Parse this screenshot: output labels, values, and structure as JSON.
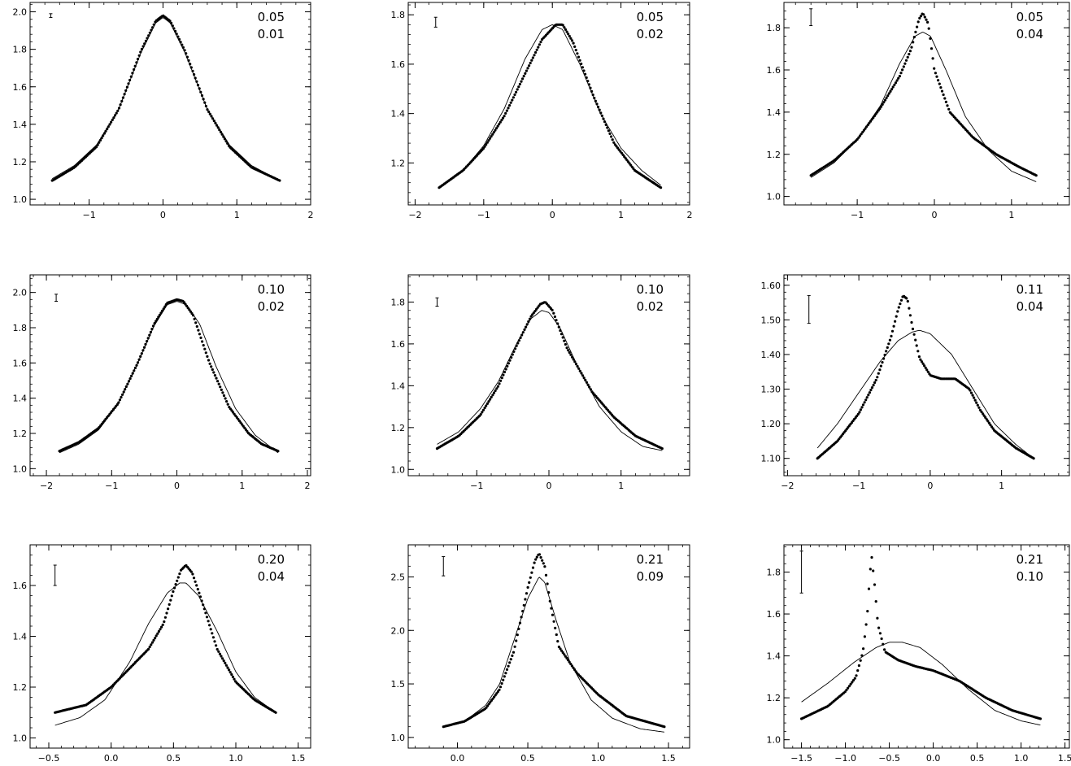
{
  "chart_data": [
    {
      "type": "line",
      "annotations": [
        "0.05",
        "0.01"
      ],
      "xlim": [
        -1.8,
        2.0
      ],
      "ylim": [
        0.97,
        2.05
      ],
      "xticks": [
        -1,
        0,
        1,
        2
      ],
      "xtick_labels": [
        "−1",
        "0",
        "1",
        "2"
      ],
      "yticks": [
        1.0,
        1.2,
        1.4,
        1.6,
        1.8,
        2.0
      ],
      "ytick_labels": [
        "1.0",
        "1.2",
        "1.4",
        "1.6",
        "1.8",
        "2.0"
      ],
      "error_bar": {
        "x": -1.52,
        "y": 1.98,
        "half": 0.01
      },
      "series": [
        {
          "style": "dotted",
          "x": [
            -1.5,
            -1.2,
            -0.9,
            -0.6,
            -0.3,
            -0.1,
            0,
            0.1,
            0.3,
            0.6,
            0.9,
            1.2,
            1.58
          ],
          "y": [
            1.1,
            1.17,
            1.28,
            1.48,
            1.79,
            1.95,
            1.98,
            1.95,
            1.79,
            1.48,
            1.28,
            1.17,
            1.1
          ]
        },
        {
          "style": "solid",
          "x": [
            -1.5,
            -1.2,
            -0.9,
            -0.6,
            -0.3,
            -0.1,
            0,
            0.1,
            0.3,
            0.6,
            0.9,
            1.2,
            1.58
          ],
          "y": [
            1.11,
            1.18,
            1.29,
            1.48,
            1.78,
            1.94,
            1.97,
            1.94,
            1.78,
            1.48,
            1.29,
            1.18,
            1.1
          ]
        }
      ]
    },
    {
      "type": "line",
      "annotations": [
        "0.05",
        "0.02"
      ],
      "xlim": [
        -2.1,
        2.0
      ],
      "ylim": [
        1.03,
        1.85
      ],
      "xticks": [
        -2,
        -1,
        0,
        1,
        2
      ],
      "xtick_labels": [
        "−2",
        "−1",
        "0",
        "1",
        "2"
      ],
      "yticks": [
        1.2,
        1.4,
        1.6,
        1.8
      ],
      "ytick_labels": [
        "1.2",
        "1.4",
        "1.6",
        "1.8"
      ],
      "error_bar": {
        "x": -1.7,
        "y": 1.77,
        "half": 0.02
      },
      "series": [
        {
          "style": "dotted",
          "x": [
            -1.65,
            -1.3,
            -1.0,
            -0.7,
            -0.4,
            -0.15,
            0.05,
            0.15,
            0.3,
            0.6,
            0.9,
            1.2,
            1.58
          ],
          "y": [
            1.1,
            1.17,
            1.26,
            1.39,
            1.56,
            1.7,
            1.76,
            1.76,
            1.69,
            1.47,
            1.28,
            1.17,
            1.1
          ]
        },
        {
          "style": "solid",
          "x": [
            -1.65,
            -1.3,
            -1.0,
            -0.7,
            -0.4,
            -0.15,
            0,
            0.15,
            0.4,
            0.7,
            1.0,
            1.3,
            1.58
          ],
          "y": [
            1.1,
            1.17,
            1.27,
            1.42,
            1.62,
            1.74,
            1.76,
            1.74,
            1.6,
            1.4,
            1.26,
            1.17,
            1.11
          ]
        }
      ]
    },
    {
      "type": "line",
      "annotations": [
        "0.05",
        "0.04"
      ],
      "xlim": [
        -1.95,
        1.75
      ],
      "ylim": [
        0.96,
        1.92
      ],
      "xticks": [
        -1,
        0,
        1
      ],
      "xtick_labels": [
        "−1",
        "0",
        "1"
      ],
      "yticks": [
        1.0,
        1.2,
        1.4,
        1.6,
        1.8
      ],
      "ytick_labels": [
        "1.0",
        "1.2",
        "1.4",
        "1.6",
        "1.8"
      ],
      "error_bar": {
        "x": -1.6,
        "y": 1.85,
        "half": 0.04
      },
      "series": [
        {
          "style": "dotted",
          "x": [
            -1.6,
            -1.3,
            -1.0,
            -0.7,
            -0.45,
            -0.3,
            -0.2,
            -0.15,
            -0.08,
            0,
            0.2,
            0.5,
            0.8,
            1.1,
            1.32
          ],
          "y": [
            1.1,
            1.17,
            1.27,
            1.42,
            1.57,
            1.7,
            1.84,
            1.87,
            1.82,
            1.6,
            1.4,
            1.28,
            1.2,
            1.14,
            1.1
          ]
        },
        {
          "style": "solid",
          "x": [
            -1.6,
            -1.3,
            -1.0,
            -0.7,
            -0.45,
            -0.25,
            -0.15,
            -0.05,
            0.15,
            0.4,
            0.7,
            1.0,
            1.32
          ],
          "y": [
            1.09,
            1.16,
            1.27,
            1.43,
            1.63,
            1.76,
            1.78,
            1.76,
            1.6,
            1.38,
            1.22,
            1.12,
            1.07
          ]
        }
      ]
    },
    {
      "type": "line",
      "annotations": [
        "0.10",
        "0.02"
      ],
      "xlim": [
        -2.25,
        2.05
      ],
      "ylim": [
        0.96,
        2.1
      ],
      "xticks": [
        -2,
        -1,
        0,
        1,
        2
      ],
      "xtick_labels": [
        "−2",
        "−1",
        "0",
        "1",
        "2"
      ],
      "yticks": [
        1.0,
        1.2,
        1.4,
        1.6,
        1.8,
        2.0
      ],
      "ytick_labels": [
        "1.0",
        "1.2",
        "1.4",
        "1.6",
        "1.8",
        "2.0"
      ],
      "error_bar": {
        "x": -1.85,
        "y": 1.97,
        "half": 0.02
      },
      "series": [
        {
          "style": "dotted",
          "x": [
            -1.8,
            -1.5,
            -1.2,
            -0.9,
            -0.6,
            -0.35,
            -0.15,
            0,
            0.1,
            0.25,
            0.5,
            0.8,
            1.1,
            1.3,
            1.55
          ],
          "y": [
            1.1,
            1.15,
            1.23,
            1.37,
            1.6,
            1.82,
            1.94,
            1.96,
            1.95,
            1.87,
            1.6,
            1.35,
            1.2,
            1.14,
            1.1
          ]
        },
        {
          "style": "solid",
          "x": [
            -1.8,
            -1.5,
            -1.2,
            -0.9,
            -0.6,
            -0.35,
            -0.15,
            0,
            0.15,
            0.35,
            0.6,
            0.9,
            1.2,
            1.55
          ],
          "y": [
            1.09,
            1.14,
            1.22,
            1.37,
            1.6,
            1.81,
            1.93,
            1.95,
            1.93,
            1.82,
            1.58,
            1.34,
            1.19,
            1.09
          ]
        }
      ]
    },
    {
      "type": "line",
      "annotations": [
        "0.10",
        "0.02"
      ],
      "xlim": [
        -1.95,
        1.95
      ],
      "ylim": [
        0.97,
        1.93
      ],
      "xticks": [
        -1,
        0,
        1
      ],
      "xtick_labels": [
        "−1",
        "0",
        "1"
      ],
      "yticks": [
        1.0,
        1.2,
        1.4,
        1.6,
        1.8
      ],
      "ytick_labels": [
        "1.0",
        "1.2",
        "1.4",
        "1.6",
        "1.8"
      ],
      "error_bar": {
        "x": -1.55,
        "y": 1.8,
        "half": 0.02
      },
      "series": [
        {
          "style": "dotted",
          "x": [
            -1.55,
            -1.25,
            -0.95,
            -0.7,
            -0.45,
            -0.25,
            -0.12,
            -0.05,
            0.05,
            0.25,
            0.6,
            0.9,
            1.2,
            1.57
          ],
          "y": [
            1.1,
            1.16,
            1.26,
            1.4,
            1.59,
            1.73,
            1.79,
            1.8,
            1.76,
            1.58,
            1.37,
            1.25,
            1.16,
            1.1
          ]
        },
        {
          "style": "solid",
          "x": [
            -1.55,
            -1.25,
            -0.95,
            -0.7,
            -0.45,
            -0.25,
            -0.1,
            0,
            0.15,
            0.4,
            0.7,
            1.0,
            1.3,
            1.57
          ],
          "y": [
            1.12,
            1.18,
            1.29,
            1.42,
            1.6,
            1.72,
            1.76,
            1.75,
            1.68,
            1.49,
            1.3,
            1.18,
            1.11,
            1.09
          ]
        }
      ]
    },
    {
      "type": "line",
      "annotations": [
        "0.11",
        "0.04"
      ],
      "xlim": [
        -2.05,
        1.95
      ],
      "ylim": [
        1.05,
        1.63
      ],
      "xticks": [
        -2,
        -1,
        0,
        1
      ],
      "xtick_labels": [
        "−2",
        "−1",
        "0",
        "1"
      ],
      "yticks": [
        1.1,
        1.2,
        1.3,
        1.4,
        1.5,
        1.6
      ],
      "ytick_labels": [
        "1.10",
        "1.20",
        "1.30",
        "1.40",
        "1.50",
        "1.60"
      ],
      "error_bar": {
        "x": -1.7,
        "y": 1.53,
        "half": 0.04
      },
      "series": [
        {
          "style": "dotted",
          "x": [
            -1.58,
            -1.3,
            -1.0,
            -0.75,
            -0.55,
            -0.45,
            -0.38,
            -0.32,
            -0.25,
            -0.15,
            0,
            0.15,
            0.35,
            0.55,
            0.7,
            0.9,
            1.2,
            1.45
          ],
          "y": [
            1.1,
            1.15,
            1.23,
            1.33,
            1.45,
            1.53,
            1.57,
            1.56,
            1.48,
            1.39,
            1.34,
            1.33,
            1.33,
            1.3,
            1.24,
            1.18,
            1.13,
            1.1
          ]
        },
        {
          "style": "solid",
          "x": [
            -1.58,
            -1.3,
            -1.0,
            -0.7,
            -0.45,
            -0.25,
            -0.15,
            0,
            0.3,
            0.6,
            0.9,
            1.2,
            1.45
          ],
          "y": [
            1.13,
            1.2,
            1.29,
            1.38,
            1.44,
            1.465,
            1.47,
            1.46,
            1.4,
            1.3,
            1.2,
            1.14,
            1.1
          ]
        }
      ]
    },
    {
      "type": "line",
      "annotations": [
        "0.20",
        "0.04"
      ],
      "xlim": [
        -0.65,
        1.6
      ],
      "ylim": [
        0.96,
        1.76
      ],
      "xticks": [
        -0.5,
        0,
        0.5,
        1.0,
        1.5
      ],
      "xtick_labels": [
        "−0.5",
        "0.0",
        "0.5",
        "1.0",
        "1.5"
      ],
      "yticks": [
        1.0,
        1.2,
        1.4,
        1.6
      ],
      "ytick_labels": [
        "1.0",
        "1.2",
        "1.4",
        "1.6"
      ],
      "error_bar": {
        "x": -0.45,
        "y": 1.64,
        "half": 0.04
      },
      "series": [
        {
          "style": "dotted",
          "x": [
            -0.45,
            -0.2,
            0,
            0.1,
            0.2,
            0.3,
            0.42,
            0.5,
            0.56,
            0.6,
            0.65,
            0.72,
            0.85,
            1.0,
            1.15,
            1.32
          ],
          "y": [
            1.1,
            1.13,
            1.2,
            1.25,
            1.3,
            1.35,
            1.45,
            1.58,
            1.66,
            1.68,
            1.65,
            1.55,
            1.35,
            1.22,
            1.15,
            1.1
          ]
        },
        {
          "style": "solid",
          "x": [
            -0.45,
            -0.25,
            -0.05,
            0.15,
            0.3,
            0.45,
            0.55,
            0.6,
            0.7,
            0.85,
            1.0,
            1.15,
            1.32
          ],
          "y": [
            1.05,
            1.08,
            1.15,
            1.3,
            1.45,
            1.57,
            1.61,
            1.61,
            1.56,
            1.42,
            1.26,
            1.16,
            1.1
          ]
        }
      ]
    },
    {
      "type": "line",
      "annotations": [
        "0.21",
        "0.09"
      ],
      "xlim": [
        -0.35,
        1.65
      ],
      "ylim": [
        0.9,
        2.8
      ],
      "xticks": [
        0,
        0.5,
        1.0,
        1.5
      ],
      "xtick_labels": [
        "0.0",
        "0.5",
        "1.0",
        "1.5"
      ],
      "yticks": [
        1.0,
        1.5,
        2.0,
        2.5
      ],
      "ytick_labels": [
        "1.0",
        "1.5",
        "2.0",
        "2.5"
      ],
      "error_bar": {
        "x": -0.1,
        "y": 2.6,
        "half": 0.09
      },
      "series": [
        {
          "style": "dotted",
          "x": [
            -0.1,
            0.05,
            0.2,
            0.3,
            0.4,
            0.45,
            0.5,
            0.55,
            0.58,
            0.62,
            0.66,
            0.72,
            0.85,
            1.0,
            1.2,
            1.47
          ],
          "y": [
            1.1,
            1.15,
            1.27,
            1.45,
            1.8,
            2.1,
            2.4,
            2.65,
            2.72,
            2.6,
            2.25,
            1.85,
            1.6,
            1.4,
            1.2,
            1.1
          ]
        },
        {
          "style": "solid",
          "x": [
            -0.1,
            0.05,
            0.2,
            0.3,
            0.4,
            0.5,
            0.58,
            0.62,
            0.7,
            0.8,
            0.95,
            1.1,
            1.3,
            1.47
          ],
          "y": [
            1.1,
            1.15,
            1.3,
            1.5,
            1.9,
            2.3,
            2.5,
            2.45,
            2.1,
            1.7,
            1.35,
            1.18,
            1.08,
            1.05
          ]
        }
      ]
    },
    {
      "type": "line",
      "annotations": [
        "0.21",
        "0.10"
      ],
      "xlim": [
        -1.7,
        1.55
      ],
      "ylim": [
        0.96,
        1.93
      ],
      "xticks": [
        -1.5,
        -1.0,
        -0.5,
        0,
        0.5,
        1.0,
        1.5
      ],
      "xtick_labels": [
        "−1.5",
        "−1.0",
        "−0.5",
        "0.0",
        "0.5",
        "1.0",
        "1.5"
      ],
      "yticks": [
        1.0,
        1.2,
        1.4,
        1.6,
        1.8
      ],
      "ytick_labels": [
        "1.0",
        "1.2",
        "1.4",
        "1.6",
        "1.8"
      ],
      "error_bar": {
        "x": -1.5,
        "y": 1.8,
        "half": 0.1
      },
      "series": [
        {
          "style": "dotted",
          "x": [
            -1.5,
            -1.2,
            -1.0,
            -0.88,
            -0.8,
            -0.75,
            -0.72,
            -0.7,
            -0.67,
            -0.63,
            -0.55,
            -0.4,
            -0.2,
            0,
            0.3,
            0.6,
            0.9,
            1.22
          ],
          "y": [
            1.1,
            1.16,
            1.23,
            1.3,
            1.42,
            1.6,
            1.8,
            1.87,
            1.75,
            1.55,
            1.42,
            1.38,
            1.35,
            1.33,
            1.28,
            1.2,
            1.14,
            1.1
          ]
        },
        {
          "style": "solid",
          "x": [
            -1.5,
            -1.2,
            -0.9,
            -0.65,
            -0.5,
            -0.35,
            -0.15,
            0.1,
            0.4,
            0.7,
            1.0,
            1.22
          ],
          "y": [
            1.18,
            1.27,
            1.37,
            1.44,
            1.465,
            1.465,
            1.44,
            1.36,
            1.24,
            1.14,
            1.09,
            1.07
          ]
        }
      ]
    }
  ]
}
